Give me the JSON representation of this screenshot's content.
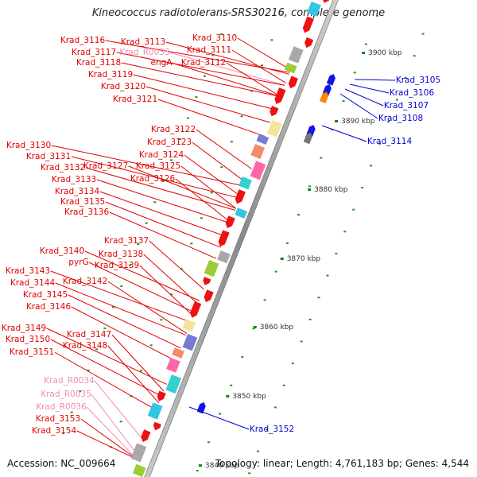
{
  "title": "Kineococcus radiotolerans SRS30216, complete genome",
  "footer": {
    "accession": "Accession: NC_009664",
    "topology": "Topology: linear; Length: 4,761,183 bp; Genes: 4,544"
  },
  "colors": {
    "forward_label": "#e00000",
    "reverse_label": "#0000d0",
    "rna_label": "#f08cb4",
    "kbp_tick": "#118811"
  },
  "kbp_ticks": [
    {
      "label": "3900 kbp",
      "kbp": 3900
    },
    {
      "label": "3890 kbp",
      "kbp": 3890
    },
    {
      "label": "3880 kbp",
      "kbp": 3880
    },
    {
      "label": "3870 kbp",
      "kbp": 3870
    },
    {
      "label": "3860 kbp",
      "kbp": 3860
    },
    {
      "label": "3850 kbp",
      "kbp": 3850
    },
    {
      "label": "3840 kbp",
      "kbp": 3840
    }
  ],
  "forward_genes": [
    {
      "label": "Krad_3110",
      "color": "red"
    },
    {
      "label": "Krad_3113",
      "color": "red"
    },
    {
      "label": "Krad_3116",
      "color": "red"
    },
    {
      "label": "Krad_R0033",
      "color": "pink"
    },
    {
      "label": "Krad_3111",
      "color": "red"
    },
    {
      "label": "Krad_3117",
      "color": "red"
    },
    {
      "label": "engA",
      "color": "red"
    },
    {
      "label": "Krad_3112",
      "color": "red"
    },
    {
      "label": "Krad_3118",
      "color": "red"
    },
    {
      "label": "Krad_3119",
      "color": "red"
    },
    {
      "label": "Krad_3120",
      "color": "red"
    },
    {
      "label": "Krad_3121",
      "color": "red"
    },
    {
      "label": "Krad_3122",
      "color": "red"
    },
    {
      "label": "Krad_3123",
      "color": "red"
    },
    {
      "label": "Krad_3130",
      "color": "red"
    },
    {
      "label": "Krad_3124",
      "color": "red"
    },
    {
      "label": "Krad_3131",
      "color": "red"
    },
    {
      "label": "Krad_3125",
      "color": "red"
    },
    {
      "label": "Krad_3132",
      "color": "red"
    },
    {
      "label": "Krad_3127",
      "color": "red"
    },
    {
      "label": "Krad_3126",
      "color": "red"
    },
    {
      "label": "Krad_3133",
      "color": "red"
    },
    {
      "label": "Krad_3134",
      "color": "red"
    },
    {
      "label": "Krad_3135",
      "color": "red"
    },
    {
      "label": "Krad_3136",
      "color": "red"
    },
    {
      "label": "Krad_3137",
      "color": "red"
    },
    {
      "label": "Krad_3140",
      "color": "red"
    },
    {
      "label": "Krad_3138",
      "color": "red"
    },
    {
      "label": "pyrG",
      "color": "red"
    },
    {
      "label": "Krad_3139",
      "color": "red"
    },
    {
      "label": "Krad_3143",
      "color": "red"
    },
    {
      "label": "Krad_3142",
      "color": "red"
    },
    {
      "label": "Krad_3144",
      "color": "red"
    },
    {
      "label": "Krad_3145",
      "color": "red"
    },
    {
      "label": "Krad_3146",
      "color": "red"
    },
    {
      "label": "Krad_3149",
      "color": "red"
    },
    {
      "label": "Krad_3147",
      "color": "red"
    },
    {
      "label": "Krad_3150",
      "color": "red"
    },
    {
      "label": "Krad_3148",
      "color": "red"
    },
    {
      "label": "Krad_3151",
      "color": "red"
    },
    {
      "label": "Krad_R0034",
      "color": "pink"
    },
    {
      "label": "Krad_R0035",
      "color": "pink"
    },
    {
      "label": "Krad_R0036",
      "color": "pink"
    },
    {
      "label": "Krad_3153",
      "color": "red"
    },
    {
      "label": "Krad_3154",
      "color": "red"
    }
  ],
  "reverse_genes": [
    {
      "label": "Krad_3105"
    },
    {
      "label": "Krad_3106"
    },
    {
      "label": "Krad_3107"
    },
    {
      "label": "Krad_3108"
    },
    {
      "label": "Krad_3114"
    },
    {
      "label": "Krad_3152"
    }
  ]
}
